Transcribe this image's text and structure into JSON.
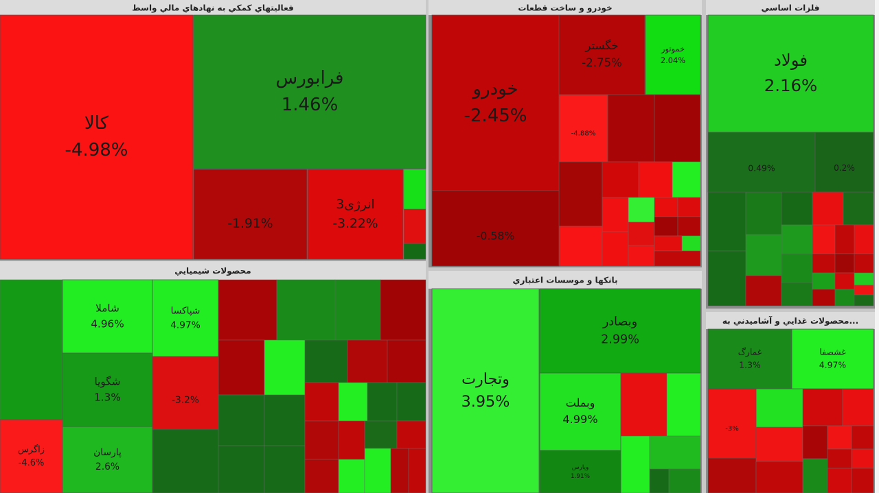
{
  "chart_data": {
    "type": "treemap",
    "groups": [
      {
        "title": "فعاليتهاي كمكي به نهادهاي مالي واسط",
        "categories": [
          "كالا",
          "فرابورس",
          null,
          "انرژی3"
        ],
        "values": [
          -4.98,
          1.46,
          -1.91,
          -3.22
        ],
        "value_labels": [
          "-4.98%",
          "1.46%",
          "-1.91%",
          "-3.22%"
        ],
        "colors": [
          "#fb1212",
          "#1f901f",
          "#b00808",
          "#dc0a0a"
        ]
      },
      {
        "title": "خودرو و ساخت قطعات",
        "categories": [
          "خودرو",
          null,
          "خگستر",
          "خموتور",
          null
        ],
        "values": [
          -2.45,
          -0.58,
          -2.75,
          2.04,
          -4.88
        ],
        "value_labels": [
          "-2.45%",
          "-0.58%",
          "-2.75%",
          "2.04%",
          "-4.88%"
        ],
        "colors": [
          "#c00606",
          "#a00404",
          "#b40606",
          "#12dc12",
          "#fa1a1a"
        ]
      },
      {
        "title": "فلزات اساسي",
        "categories": [
          "فولاد",
          null,
          null
        ],
        "values": [
          2.16,
          0.49,
          0.2
        ],
        "value_labels": [
          "2.16%",
          "0.49%",
          "0.2%"
        ],
        "colors": [
          "#22cc22",
          "#1b6e1b",
          "#1a641a"
        ]
      },
      {
        "title": "محصولات شيميايي",
        "categories": [
          "زاگرس",
          "شاملا",
          "شپاکسا",
          "شگويا",
          null,
          "پارسان"
        ],
        "values": [
          -4.6,
          4.96,
          4.97,
          1.3,
          -3.2,
          2.6
        ],
        "value_labels": [
          "-4.6%",
          "4.96%",
          "4.97%",
          "1.3%",
          "-3.2%",
          "2.6%"
        ],
        "colors": [
          "#fb1a1a",
          "#22ec22",
          "#22ec22",
          "#179a17",
          "#dc1010",
          "#20b820"
        ]
      },
      {
        "title": "بانكها و موسسات اعتباري",
        "categories": [
          "وتجارت",
          "وبصادر",
          "وبملت",
          "وپارس"
        ],
        "values": [
          3.95,
          2.99,
          4.99,
          1.91
        ],
        "value_labels": [
          "3.95%",
          "2.99%",
          "4.99%",
          "1.91%"
        ],
        "colors": [
          "#33ee33",
          "#12aa12",
          "#22e022",
          "#128812"
        ]
      },
      {
        "title": "محصولات غذايي و آشاميدني به...",
        "categories": [
          "غمارگ",
          "غشصفا",
          null
        ],
        "values": [
          1.3,
          4.97,
          -3
        ],
        "value_labels": [
          "1.3%",
          "4.97%",
          "-3%"
        ],
        "colors": [
          "#1a8a1a",
          "#22ee22",
          "#f01414"
        ]
      }
    ]
  }
}
